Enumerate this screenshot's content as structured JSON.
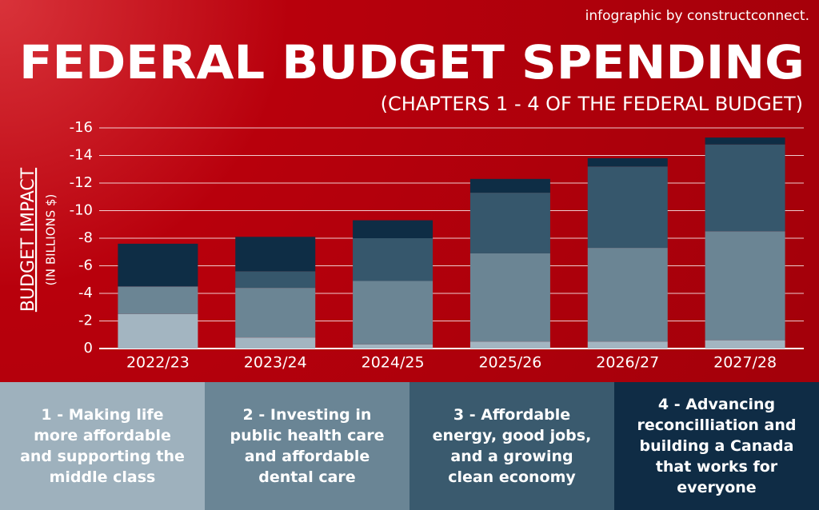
{
  "chart_data": {
    "type": "stacked-bar",
    "credit": "infographic by constructconnect.",
    "title": "FEDERAL BUDGET SPENDING",
    "subtitle": "(CHAPTERS 1 - 4 OF THE FEDERAL BUDGET)",
    "ylabel": "BUDGET IMPACT",
    "ylabel_sub": "(IN BILLIONS $)",
    "categories": [
      "2022/23",
      "2023/24",
      "2024/25",
      "2025/26",
      "2026/27",
      "2027/28"
    ],
    "series": [
      {
        "name": "1 - Making life more affordable and supporting the middle class",
        "color": "#a3b5c1",
        "values": [
          -2.5,
          -0.8,
          -0.3,
          -0.5,
          -0.5,
          -0.6
        ]
      },
      {
        "name": "2 - Investing in public health care and affordable dental care",
        "color": "#6b8594",
        "values": [
          -2.0,
          -3.6,
          -4.6,
          -6.4,
          -6.8,
          -7.9
        ]
      },
      {
        "name": "3 - Affordable energy, good jobs, and a growing clean economy",
        "color": "#36576c",
        "values": [
          0,
          -1.2,
          -3.1,
          -4.4,
          -5.9,
          -6.3
        ]
      },
      {
        "name": "4 - Advancing reconcilliation and building a Canada that works for everyone",
        "color": "#0e2d45",
        "values": [
          -3.1,
          -2.5,
          -1.3,
          -1.0,
          -0.6,
          -0.5
        ]
      }
    ],
    "ylim": [
      0,
      -16
    ],
    "yticks": [
      0,
      -2,
      -4,
      -6,
      -8,
      -10,
      -12,
      -14,
      -16
    ],
    "grid": true
  }
}
